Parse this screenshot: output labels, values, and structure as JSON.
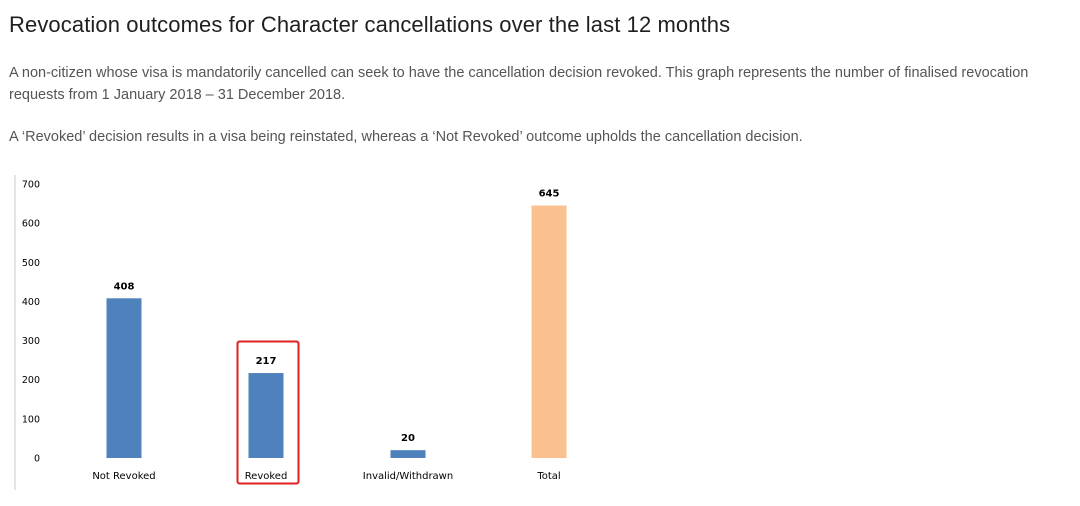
{
  "page": {
    "title": "Revocation outcomes for Character cancellations over the last 12 months",
    "paragraph1": "A non-citizen whose visa is mandatorily cancelled can seek to have the cancellation decision revoked. This graph represents the number of finalised revocation requests from 1 January 2018 – 31 December 2018.",
    "paragraph2": "A ‘Revoked’ decision results in a visa being reinstated, whereas a ‘Not Revoked’ outcome upholds the cancellation decision."
  },
  "chart_data": {
    "type": "bar",
    "title": "",
    "xlabel": "",
    "ylabel": "",
    "categories": [
      "Not Revoked",
      "Revoked",
      "Invalid/Withdrawn",
      "Total"
    ],
    "values": [
      408,
      217,
      20,
      645
    ],
    "data_labels": [
      "408",
      "217",
      "20",
      "645"
    ],
    "colors": [
      "#4f81bd",
      "#4f81bd",
      "#4f81bd",
      "#fac090"
    ],
    "y_ticks": [
      0,
      100,
      200,
      300,
      400,
      500,
      600,
      700
    ],
    "ylim": [
      0,
      700
    ],
    "grid": false,
    "legend": "none",
    "highlighted_category": "Revoked",
    "highlight_color": "#e02020"
  }
}
